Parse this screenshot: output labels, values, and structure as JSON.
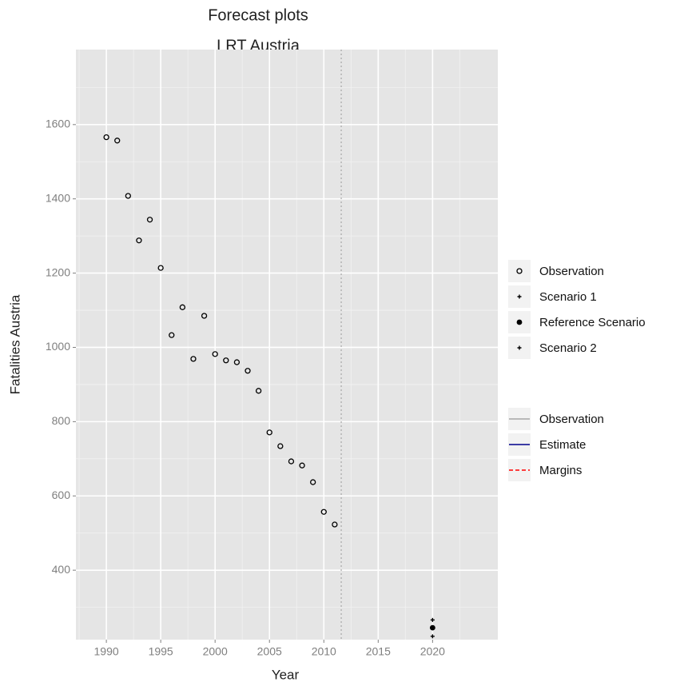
{
  "chart_data": {
    "type": "scatter",
    "title": "Forecast plots",
    "subtitle": "LRT Austria",
    "x_label": "Year",
    "y_label": "Fatalities Austria",
    "xlim": [
      1987.2,
      2026
    ],
    "ylim": [
      213,
      1802
    ],
    "xticks": [
      1990,
      1995,
      2000,
      2005,
      2010,
      2015,
      2020
    ],
    "yticks": [
      400,
      600,
      800,
      1000,
      1200,
      1400,
      1600
    ],
    "xminor_ticks": [
      1987.5,
      1992.5,
      1997.5,
      2002.5,
      2007.5,
      2012.5,
      2017.5,
      2022.5
    ],
    "yminor_ticks": [
      300,
      500,
      700,
      900,
      1100,
      1300,
      1500,
      1700
    ],
    "grid": true,
    "vline": 2011.6,
    "series": [
      {
        "name": "Observation",
        "color": "#000000",
        "shape": "circle",
        "x": [
          1990,
          1991,
          1992,
          1993,
          1994,
          1995,
          1996,
          1997,
          1998,
          1999,
          2000,
          2001,
          2002,
          2003,
          2004,
          2005,
          2006,
          2007,
          2008,
          2009,
          2010,
          2011
        ],
        "values": [
          1566,
          1557,
          1408,
          1288,
          1344,
          1214,
          1033,
          1108,
          969,
          1085,
          982,
          965,
          960,
          937,
          883,
          771,
          734,
          693,
          682,
          637,
          557,
          523
        ]
      },
      {
        "name": "Scenario 1",
        "color": "#000000",
        "shape": "plus",
        "x": [
          2020
        ],
        "values": [
          266
        ]
      },
      {
        "name": "Reference Scenario",
        "color": "#000000",
        "shape": "dot",
        "x": [
          2020
        ],
        "values": [
          245
        ]
      },
      {
        "name": "Scenario 2",
        "color": "#000000",
        "shape": "plus",
        "x": [
          2020
        ],
        "values": [
          222
        ]
      }
    ],
    "line_legend": [
      {
        "name": "Observation",
        "color": "#a6a6a6",
        "dashed": false
      },
      {
        "name": "Estimate",
        "color": "#00008b",
        "dashed": false
      },
      {
        "name": "Margins",
        "color": "#ff0000",
        "dashed": true
      }
    ]
  }
}
